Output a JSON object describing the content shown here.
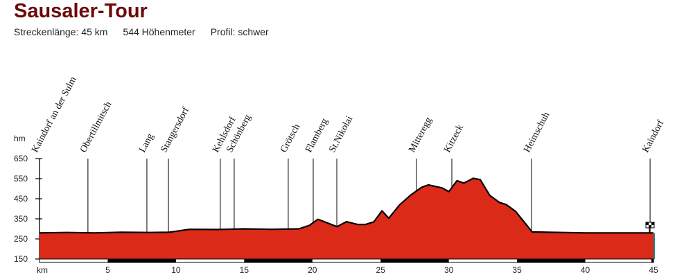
{
  "header": {
    "title": "Sausaler-Tour",
    "length_label": "Streckenlänge: 45 km",
    "elevation_gain_label": "544 Höhenmeter",
    "profile_label": "Profil: schwer"
  },
  "colors": {
    "title": "#6b0a0a",
    "fill_top": "#fdf3f3",
    "fill_bottom": "#dd2a1a",
    "outline": "#000000",
    "end_line": "#1a8a80"
  },
  "chart_data": {
    "type": "area",
    "title": "Sausaler-Tour",
    "xlabel": "km",
    "ylabel": "hm",
    "xlim": [
      0,
      45
    ],
    "ylim": [
      150,
      650
    ],
    "x_ticks": [
      5,
      10,
      15,
      20,
      25,
      30,
      35,
      40,
      45
    ],
    "y_ticks": [
      150,
      250,
      350,
      450,
      550,
      650
    ],
    "grid": false,
    "legend": null,
    "x": [
      0,
      2,
      4,
      6,
      8,
      9.5,
      11,
      13,
      15,
      17,
      19,
      19.8,
      20.4,
      21,
      21.8,
      22.5,
      23.3,
      23.9,
      24.5,
      25.1,
      25.6,
      26.4,
      27.2,
      28,
      28.5,
      29.5,
      30,
      30.6,
      31.1,
      31.8,
      32.3,
      33,
      33.7,
      34.2,
      34.9,
      35.7,
      36.1,
      37.3,
      40,
      43,
      45
    ],
    "values": [
      280,
      282,
      280,
      283,
      282,
      283,
      298,
      297,
      300,
      298,
      300,
      318,
      348,
      332,
      311,
      336,
      322,
      322,
      335,
      390,
      353,
      420,
      468,
      507,
      519,
      504,
      486,
      540,
      528,
      552,
      545,
      467,
      432,
      421,
      387,
      319,
      285,
      283,
      280,
      280,
      280
    ],
    "waypoints": [
      {
        "name": "Kaindorf an der Sulm",
        "km": 0
      },
      {
        "name": "Obertillmitsch",
        "km": 3.55
      },
      {
        "name": "Lang",
        "km": 7.87
      },
      {
        "name": "Stangersdorf",
        "km": 9.45
      },
      {
        "name": "Kehlsdorf",
        "km": 13.25
      },
      {
        "name": "Schönberg",
        "km": 14.27
      },
      {
        "name": "Grötsch",
        "km": 18.23
      },
      {
        "name": "Flamberg",
        "km": 20.06
      },
      {
        "name": "St.Nikolai",
        "km": 21.79
      },
      {
        "name": "Mitteregg",
        "km": 27.63
      },
      {
        "name": "Kitzeck",
        "km": 30.22
      },
      {
        "name": "Heimschuh",
        "km": 36.06
      },
      {
        "name": "Kaindorf",
        "km": 44.75
      }
    ]
  },
  "axis": {
    "y_unit": "hm",
    "x_unit": "km"
  }
}
